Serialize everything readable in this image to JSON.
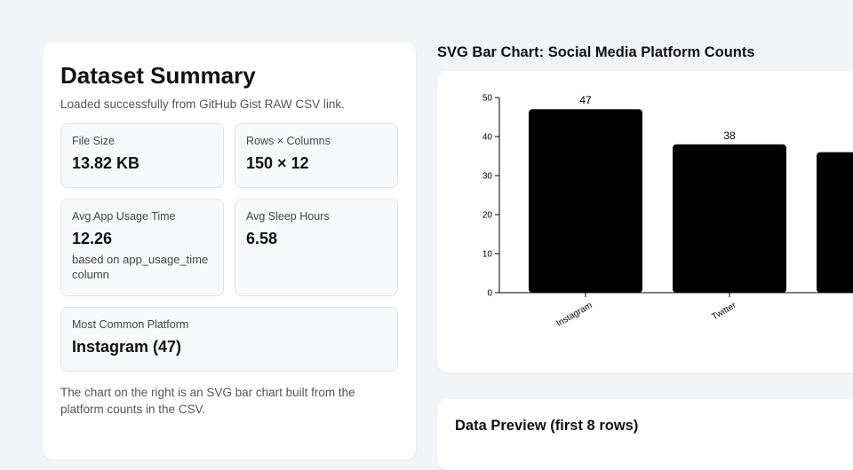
{
  "summary": {
    "title": "Dataset Summary",
    "subtitle": "Loaded successfully from GitHub Gist RAW CSV link.",
    "stats": [
      {
        "label": "File Size",
        "value": "13.82 KB"
      },
      {
        "label": "Rows × Columns",
        "value": "150 × 12"
      },
      {
        "label": "Avg App Usage Time",
        "value": "12.26",
        "note": "based on app_usage_time column"
      },
      {
        "label": "Avg Sleep Hours",
        "value": "6.58"
      },
      {
        "label": "Most Common Platform",
        "value": "Instagram (47)"
      }
    ],
    "footnote": "The chart on the right is an SVG bar chart built from the platform counts in the CSV."
  },
  "chart_heading": "SVG Bar Chart: Social Media Platform Counts",
  "chart_data": {
    "type": "bar",
    "categories": [
      "Instagram",
      "Twitter",
      null
    ],
    "values": [
      47,
      38,
      36
    ],
    "color": "#000000",
    "ylim": [
      0,
      50
    ],
    "yticks": [
      0,
      10,
      20,
      30,
      40,
      50
    ]
  },
  "preview": {
    "title": "Data Preview (first 8 rows)"
  }
}
